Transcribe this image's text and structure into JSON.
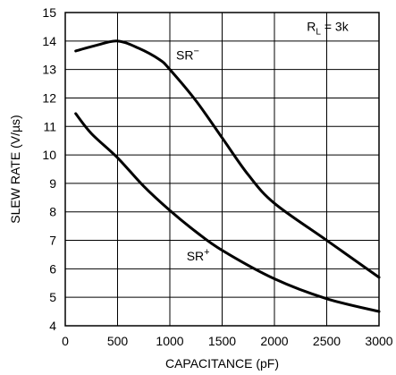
{
  "chart_data": {
    "type": "line",
    "xlabel": "CAPACITANCE (pF)",
    "ylabel": "SLEW RATE (V/µs)",
    "xlim": [
      0,
      3000
    ],
    "ylim": [
      4,
      15
    ],
    "xticks": [
      0,
      500,
      1000,
      1500,
      2000,
      2500,
      3000
    ],
    "yticks": [
      4,
      5,
      6,
      7,
      8,
      9,
      10,
      11,
      12,
      13,
      14,
      15
    ],
    "grid": true,
    "annotation": {
      "main": "R",
      "sub": "L",
      "rest": " = 3k"
    },
    "series": [
      {
        "name": "SR−",
        "label_main": "SR",
        "label_sup": "−",
        "x": [
          100,
          300,
          500,
          700,
          900,
          1000,
          1250,
          1500,
          1750,
          2000,
          2500,
          3000
        ],
        "y": [
          13.65,
          13.85,
          14.0,
          13.75,
          13.35,
          13.0,
          11.9,
          10.6,
          9.3,
          8.3,
          7.0,
          5.7
        ]
      },
      {
        "name": "SR+",
        "label_main": "SR",
        "label_sup": "+",
        "x": [
          100,
          250,
          500,
          750,
          1000,
          1250,
          1500,
          2000,
          2500,
          3000
        ],
        "y": [
          11.45,
          10.75,
          9.9,
          8.9,
          8.05,
          7.3,
          6.65,
          5.65,
          4.95,
          4.5
        ]
      }
    ]
  }
}
